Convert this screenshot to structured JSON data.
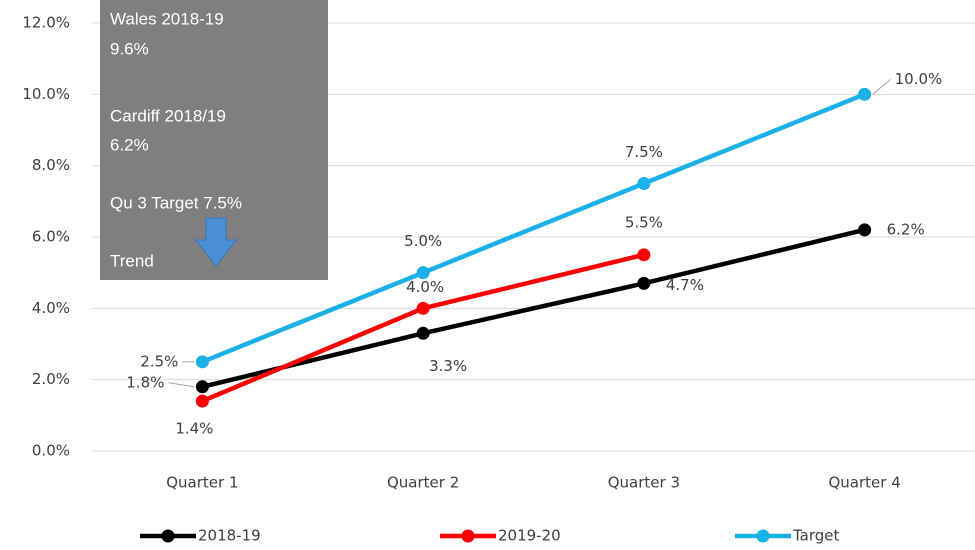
{
  "chart_data": {
    "type": "line",
    "categories": [
      "Quarter 1",
      "Quarter 2",
      "Quarter 3",
      "Quarter 4"
    ],
    "series": [
      {
        "name": "2018-19",
        "color": "#000000",
        "values": [
          1.8,
          3.3,
          4.7,
          6.2
        ],
        "value_labels": [
          "1.8%",
          "3.3%",
          "4.7%",
          "6.2%"
        ]
      },
      {
        "name": "2019-20",
        "color": "#ff0000",
        "values": [
          1.4,
          4.0,
          5.5,
          null
        ],
        "value_labels": [
          "1.4%",
          "4.0%",
          "5.5%",
          null
        ]
      },
      {
        "name": "Target",
        "color": "#1ab0e8",
        "values": [
          2.5,
          5.0,
          7.5,
          10.0
        ],
        "value_labels": [
          "2.5%",
          "5.0%",
          "7.5%",
          "10.0%"
        ]
      }
    ],
    "ylim": [
      0,
      12
    ],
    "yticks": [
      {
        "value": 0,
        "label": "0.0%"
      },
      {
        "value": 2,
        "label": "2.0%"
      },
      {
        "value": 4,
        "label": "4.0%"
      },
      {
        "value": 6,
        "label": "6.0%"
      },
      {
        "value": 8,
        "label": "8.0%"
      },
      {
        "value": 10,
        "label": "10.0%"
      },
      {
        "value": 12,
        "label": "12.0%"
      }
    ],
    "grid": true,
    "legend": "bottom",
    "annotations": [
      "Wales 2018-19",
      "9.6%",
      "Cardiff 2018/19",
      "6.2%",
      "Qu 3 Target 7.5%",
      "Trend"
    ]
  }
}
